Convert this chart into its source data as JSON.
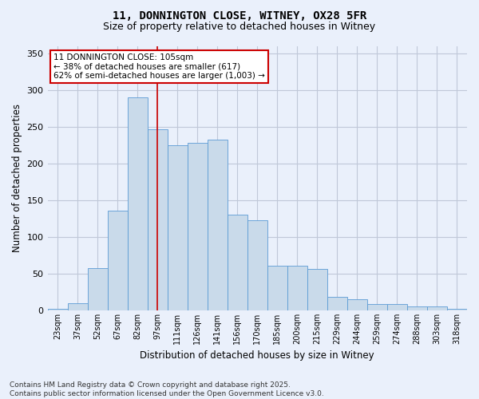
{
  "title_line1": "11, DONNINGTON CLOSE, WITNEY, OX28 5FR",
  "title_line2": "Size of property relative to detached houses in Witney",
  "xlabel": "Distribution of detached houses by size in Witney",
  "ylabel": "Number of detached properties",
  "footnote": "Contains HM Land Registry data © Crown copyright and database right 2025.\nContains public sector information licensed under the Open Government Licence v3.0.",
  "bin_labels": [
    "23sqm",
    "37sqm",
    "52sqm",
    "67sqm",
    "82sqm",
    "97sqm",
    "111sqm",
    "126sqm",
    "141sqm",
    "156sqm",
    "170sqm",
    "185sqm",
    "200sqm",
    "215sqm",
    "229sqm",
    "244sqm",
    "259sqm",
    "274sqm",
    "288sqm",
    "303sqm",
    "318sqm"
  ],
  "bar_values": [
    2,
    10,
    58,
    136,
    290,
    246,
    225,
    228,
    232,
    130,
    123,
    61,
    61,
    57,
    18,
    15,
    9,
    9,
    5,
    5,
    2
  ],
  "bar_color": "#c9daea",
  "bar_edge_color": "#5b9bd5",
  "grid_color": "#c0c8d8",
  "bg_color": "#eaf0fb",
  "red_line_x": 5.5,
  "red_line_color": "#cc0000",
  "annotation_text": "11 DONNINGTON CLOSE: 105sqm\n← 38% of detached houses are smaller (617)\n62% of semi-detached houses are larger (1,003) →",
  "annotation_box_color": "#ffffff",
  "annotation_box_edge": "#cc0000",
  "ylim": [
    0,
    360
  ],
  "yticks": [
    0,
    50,
    100,
    150,
    200,
    250,
    300,
    350
  ],
  "title_fontsize": 10,
  "subtitle_fontsize": 9,
  "footnote_fontsize": 6.5,
  "xlabel_fontsize": 8.5,
  "ylabel_fontsize": 8.5,
  "annot_fontsize": 7.5
}
